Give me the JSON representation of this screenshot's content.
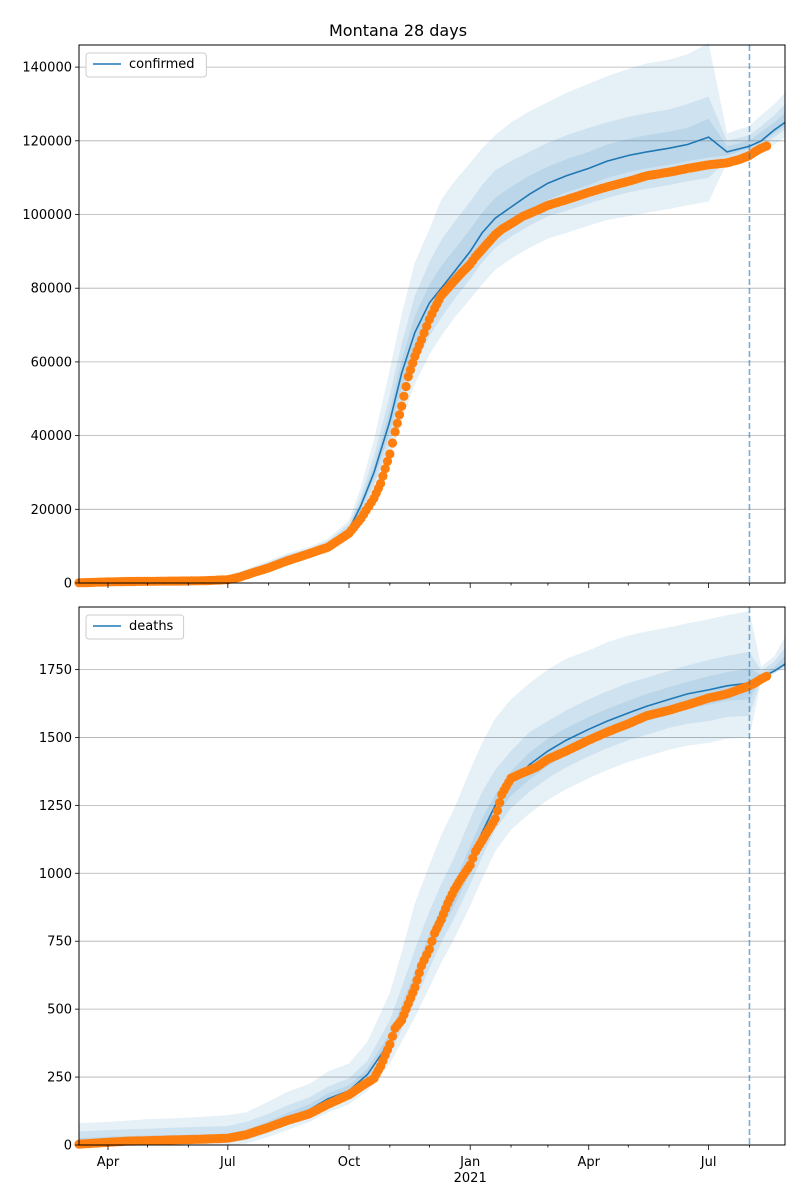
{
  "chart_data": [
    {
      "type": "line",
      "title": "Montana 28 days",
      "xlabel": "",
      "ylabel": "",
      "xlim": [
        "2020-03-10",
        "2021-08-28"
      ],
      "ylim": [
        0,
        146000
      ],
      "yticks": [
        0,
        20000,
        40000,
        60000,
        80000,
        100000,
        120000,
        140000
      ],
      "grid": "horizontal",
      "legend_position": "top-left",
      "forecast_start": "2021-08-01",
      "model": {
        "name": "confirmed",
        "color": "#1f77b4",
        "dates": [
          "2020-03-10",
          "2020-04-01",
          "2020-05-01",
          "2020-06-01",
          "2020-06-20",
          "2020-07-01",
          "2020-07-15",
          "2020-08-01",
          "2020-08-15",
          "2020-09-01",
          "2020-09-15",
          "2020-10-01",
          "2020-10-10",
          "2020-10-20",
          "2020-11-01",
          "2020-11-10",
          "2020-11-20",
          "2020-12-01",
          "2020-12-10",
          "2020-12-20",
          "2021-01-01",
          "2021-01-10",
          "2021-01-20",
          "2021-02-01",
          "2021-02-15",
          "2021-03-01",
          "2021-03-15",
          "2021-04-01",
          "2021-04-15",
          "2021-05-01",
          "2021-05-15",
          "2021-06-01",
          "2021-06-15",
          "2021-07-01",
          "2021-07-15",
          "2021-08-01",
          "2021-08-10",
          "2021-08-20",
          "2021-08-28"
        ],
        "values": [
          0,
          200,
          500,
          700,
          900,
          1500,
          3000,
          5000,
          6800,
          8500,
          10500,
          14500,
          21000,
          30000,
          44000,
          57000,
          68000,
          76000,
          80000,
          84500,
          90000,
          95000,
          99000,
          102000,
          105500,
          108500,
          110500,
          112500,
          114500,
          116000,
          117000,
          118000,
          119000,
          121000,
          117000,
          118500,
          120000,
          123000,
          125000
        ]
      },
      "bands": [
        {
          "lower": [
            0,
            150,
            400,
            600,
            750,
            1200,
            2500,
            4200,
            5800,
            7400,
            9300,
            12600,
            17500,
            24000,
            34000,
            44000,
            54000,
            62000,
            67000,
            72000,
            77000,
            81000,
            85000,
            88000,
            91000,
            93500,
            95000,
            97000,
            98500,
            99500,
            100500,
            101500,
            102500,
            103500,
            114000,
            115500,
            117000,
            119000,
            121000
          ],
          "upper": [
            0,
            300,
            700,
            1000,
            1200,
            2000,
            3800,
            6000,
            8000,
            9800,
            12000,
            17000,
            26000,
            39000,
            58000,
            73000,
            87000,
            96000,
            104000,
            109000,
            114000,
            118000,
            121500,
            125000,
            128000,
            130500,
            133000,
            135500,
            137500,
            139500,
            141000,
            142000,
            143500,
            146500,
            122000,
            124000,
            127000,
            130000,
            133000
          ]
        },
        {
          "lower": [
            0,
            170,
            440,
            640,
            800,
            1300,
            2700,
            4500,
            6100,
            7800,
            9800,
            13300,
            18800,
            26500,
            38000,
            49000,
            59000,
            67000,
            72000,
            77000,
            82500,
            87000,
            91000,
            94000,
            97000,
            99500,
            101000,
            103000,
            104500,
            106000,
            107000,
            108000,
            109000,
            110000,
            115000,
            117000,
            118500,
            121000,
            123000
          ],
          "upper": [
            0,
            260,
            620,
            880,
            1100,
            1800,
            3500,
            5600,
            7600,
            9300,
            11400,
            16000,
            23500,
            34500,
            51000,
            65000,
            78000,
            87000,
            93000,
            98000,
            103500,
            108000,
            112000,
            114500,
            117000,
            119500,
            121500,
            123500,
            125000,
            126500,
            127500,
            128500,
            130000,
            132000,
            120000,
            121500,
            124000,
            127000,
            130000
          ]
        },
        {
          "lower": [
            0,
            185,
            470,
            670,
            840,
            1400,
            2850,
            4750,
            6500,
            8150,
            10150,
            13900,
            19900,
            28300,
            41000,
            53000,
            63500,
            71500,
            76500,
            81000,
            86500,
            91000,
            95000,
            98000,
            101000,
            104000,
            106000,
            108000,
            110000,
            111500,
            112500,
            113500,
            114500,
            115500,
            116000,
            118000,
            119500,
            122000,
            124000
          ],
          "upper": [
            0,
            230,
            560,
            780,
            990,
            1650,
            3200,
            5300,
            7200,
            8900,
            10900,
            15200,
            22200,
            31800,
            47000,
            60500,
            72500,
            81000,
            86000,
            90500,
            96000,
            100500,
            104500,
            107500,
            110500,
            113000,
            115000,
            117000,
            119000,
            120500,
            121500,
            122500,
            123500,
            126000,
            118500,
            120000,
            122500,
            125000,
            127500
          ]
        }
      ],
      "observed": {
        "color": "#ff7f0e",
        "dates": [
          "2020-03-10",
          "2020-04-01",
          "2020-04-15",
          "2020-05-01",
          "2020-05-15",
          "2020-06-01",
          "2020-06-15",
          "2020-07-01",
          "2020-07-10",
          "2020-07-20",
          "2020-08-01",
          "2020-08-15",
          "2020-09-01",
          "2020-09-15",
          "2020-10-01",
          "2020-10-10",
          "2020-10-20",
          "2020-10-25",
          "2020-11-01",
          "2020-11-05",
          "2020-11-10",
          "2020-11-15",
          "2020-11-20",
          "2020-11-25",
          "2020-12-01",
          "2020-12-05",
          "2020-12-10",
          "2020-12-15",
          "2020-12-20",
          "2020-12-25",
          "2021-01-01",
          "2021-01-05",
          "2021-01-10",
          "2021-01-15",
          "2021-01-20",
          "2021-01-25",
          "2021-02-01",
          "2021-02-10",
          "2021-02-20",
          "2021-03-01",
          "2021-03-15",
          "2021-04-01",
          "2021-04-15",
          "2021-05-01",
          "2021-05-15",
          "2021-06-01",
          "2021-06-15",
          "2021-07-01",
          "2021-07-15",
          "2021-07-25",
          "2021-08-01",
          "2021-08-05",
          "2021-08-10",
          "2021-08-14"
        ],
        "values": [
          50,
          300,
          400,
          450,
          500,
          550,
          650,
          900,
          1600,
          2800,
          4100,
          6000,
          8000,
          9700,
          13500,
          17500,
          23000,
          27000,
          35000,
          41000,
          48000,
          56000,
          61500,
          66000,
          71500,
          74500,
          78000,
          80000,
          82000,
          84000,
          86500,
          88500,
          90500,
          92500,
          94500,
          96000,
          97500,
          99500,
          101000,
          102500,
          104000,
          106000,
          107500,
          109000,
          110500,
          111500,
          112500,
          113500,
          114000,
          115000,
          116000,
          117000,
          118000,
          118600
        ]
      }
    },
    {
      "type": "line",
      "title": "",
      "xlabel": "",
      "ylabel": "",
      "xlim": [
        "2020-03-10",
        "2021-08-28"
      ],
      "ylim": [
        0,
        1980
      ],
      "yticks": [
        0,
        250,
        500,
        750,
        1000,
        1250,
        1500,
        1750
      ],
      "xticks": [
        "Apr",
        "Jul",
        "Oct",
        "Jan",
        "Apr",
        "Jul"
      ],
      "xtick_dates": [
        "2020-04-01",
        "2020-07-01",
        "2020-10-01",
        "2021-01-01",
        "2021-04-01",
        "2021-07-01"
      ],
      "year_label": "2021",
      "year_label_date": "2021-01-01",
      "grid": "horizontal",
      "legend_position": "top-left",
      "forecast_start": "2021-08-01",
      "model": {
        "name": "deaths",
        "color": "#1f77b4",
        "dates": [
          "2020-03-10",
          "2020-04-01",
          "2020-05-01",
          "2020-06-01",
          "2020-07-01",
          "2020-07-15",
          "2020-08-01",
          "2020-08-15",
          "2020-09-01",
          "2020-09-15",
          "2020-10-01",
          "2020-10-15",
          "2020-11-01",
          "2020-11-10",
          "2020-11-20",
          "2020-12-01",
          "2020-12-10",
          "2020-12-20",
          "2021-01-01",
          "2021-01-10",
          "2021-01-20",
          "2021-02-01",
          "2021-02-15",
          "2021-03-01",
          "2021-03-15",
          "2021-04-01",
          "2021-04-15",
          "2021-05-01",
          "2021-05-15",
          "2021-06-01",
          "2021-06-15",
          "2021-07-01",
          "2021-07-15",
          "2021-08-01",
          "2021-08-10",
          "2021-08-20",
          "2021-08-28"
        ],
        "values": [
          0,
          10,
          18,
          22,
          25,
          40,
          70,
          100,
          130,
          170,
          200,
          260,
          380,
          480,
          600,
          730,
          830,
          920,
          1050,
          1150,
          1250,
          1330,
          1400,
          1450,
          1490,
          1530,
          1560,
          1590,
          1615,
          1640,
          1660,
          1675,
          1690,
          1700,
          1720,
          1745,
          1770
        ]
      },
      "bands": [
        {
          "lower": [
            0,
            0,
            0,
            0,
            0,
            5,
            30,
            55,
            85,
            120,
            150,
            200,
            300,
            380,
            470,
            580,
            670,
            760,
            880,
            980,
            1080,
            1160,
            1220,
            1270,
            1310,
            1350,
            1380,
            1410,
            1430,
            1455,
            1470,
            1480,
            1495,
            1500,
            1710,
            1735,
            1755
          ],
          "upper": [
            80,
            85,
            95,
            100,
            110,
            120,
            160,
            195,
            225,
            270,
            300,
            380,
            560,
            710,
            890,
            1030,
            1140,
            1240,
            1380,
            1480,
            1570,
            1640,
            1700,
            1750,
            1790,
            1820,
            1850,
            1875,
            1890,
            1905,
            1920,
            1935,
            1950,
            1965,
            1760,
            1800,
            1870
          ]
        },
        {
          "lower": [
            0,
            0,
            5,
            8,
            10,
            18,
            45,
            72,
            100,
            140,
            170,
            225,
            335,
            425,
            530,
            650,
            745,
            835,
            960,
            1060,
            1160,
            1240,
            1300,
            1350,
            1390,
            1430,
            1460,
            1490,
            1510,
            1535,
            1550,
            1560,
            1575,
            1580,
            1715,
            1740,
            1760
          ],
          "upper": [
            50,
            55,
            60,
            65,
            70,
            85,
            115,
            145,
            175,
            215,
            245,
            310,
            460,
            580,
            720,
            860,
            960,
            1060,
            1200,
            1300,
            1380,
            1450,
            1520,
            1560,
            1600,
            1640,
            1670,
            1700,
            1720,
            1745,
            1765,
            1785,
            1800,
            1815,
            1745,
            1780,
            1830
          ]
        },
        {
          "lower": [
            0,
            2,
            8,
            12,
            15,
            25,
            55,
            82,
            112,
            152,
            182,
            240,
            355,
            450,
            565,
            690,
            790,
            880,
            1005,
            1105,
            1205,
            1285,
            1345,
            1395,
            1435,
            1475,
            1505,
            1535,
            1560,
            1585,
            1605,
            1620,
            1635,
            1640,
            1717,
            1742,
            1763
          ],
          "upper": [
            25,
            30,
            35,
            38,
            42,
            55,
            88,
            118,
            150,
            190,
            220,
            282,
            410,
            515,
            640,
            775,
            875,
            965,
            1100,
            1200,
            1290,
            1375,
            1445,
            1495,
            1535,
            1575,
            1605,
            1635,
            1660,
            1685,
            1705,
            1725,
            1740,
            1755,
            1730,
            1760,
            1800
          ]
        }
      ],
      "observed": {
        "color": "#ff7f0e",
        "dates": [
          "2020-03-10",
          "2020-04-01",
          "2020-04-15",
          "2020-05-01",
          "2020-05-15",
          "2020-06-01",
          "2020-06-15",
          "2020-07-01",
          "2020-07-15",
          "2020-08-01",
          "2020-08-15",
          "2020-09-01",
          "2020-09-15",
          "2020-10-01",
          "2020-10-10",
          "2020-10-20",
          "2020-10-25",
          "2020-11-01",
          "2020-11-05",
          "2020-11-10",
          "2020-11-15",
          "2020-11-20",
          "2020-11-25",
          "2020-12-01",
          "2020-12-05",
          "2020-12-10",
          "2020-12-15",
          "2020-12-20",
          "2020-12-25",
          "2021-01-01",
          "2021-01-05",
          "2021-01-10",
          "2021-01-15",
          "2021-01-20",
          "2021-01-25",
          "2021-02-01",
          "2021-02-10",
          "2021-02-20",
          "2021-03-01",
          "2021-03-15",
          "2021-04-01",
          "2021-04-15",
          "2021-05-01",
          "2021-05-15",
          "2021-06-01",
          "2021-06-15",
          "2021-07-01",
          "2021-07-15",
          "2021-08-01",
          "2021-08-05",
          "2021-08-10",
          "2021-08-14"
        ],
        "values": [
          3,
          10,
          14,
          16,
          18,
          20,
          22,
          25,
          38,
          65,
          90,
          115,
          150,
          185,
          215,
          245,
          290,
          370,
          430,
          460,
          520,
          580,
          660,
          720,
          780,
          830,
          890,
          940,
          980,
          1030,
          1080,
          1120,
          1160,
          1200,
          1290,
          1350,
          1370,
          1390,
          1420,
          1450,
          1490,
          1520,
          1550,
          1580,
          1600,
          1620,
          1645,
          1660,
          1690,
          1700,
          1715,
          1725
        ]
      }
    }
  ]
}
